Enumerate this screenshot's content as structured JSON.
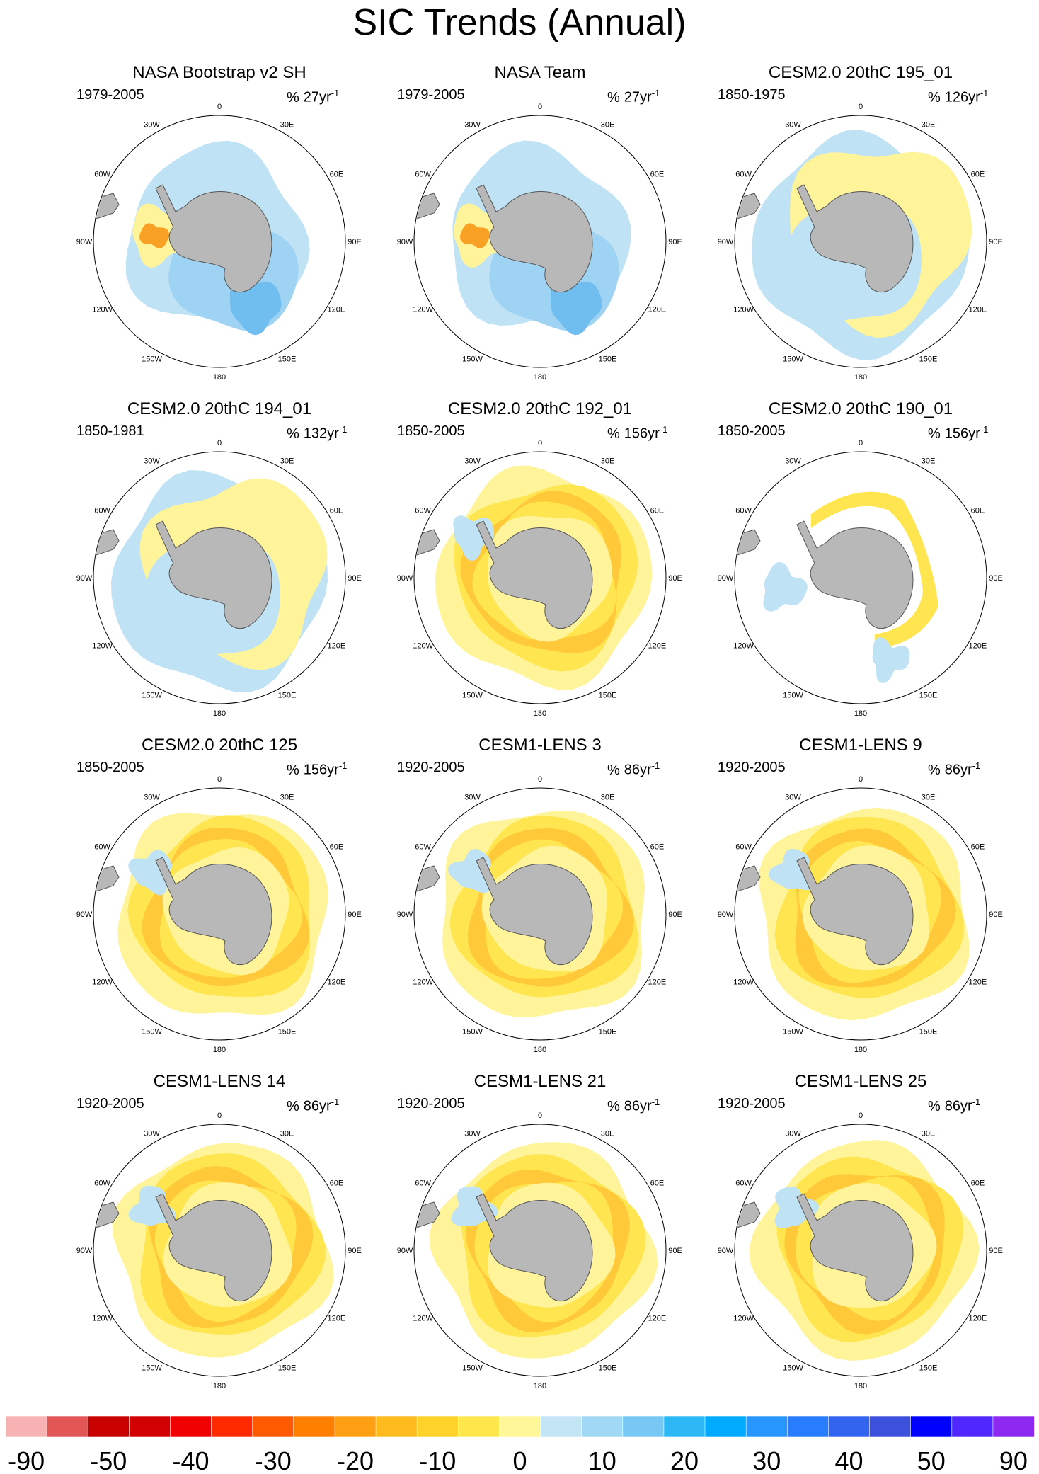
{
  "title": "SIC Trends (Annual)",
  "lon_labels": [
    "0",
    "30E",
    "60E",
    "90E",
    "120E",
    "150E",
    "180",
    "150W",
    "120W",
    "90W",
    "60W",
    "30W"
  ],
  "colors": {
    "land": "#b8b8b8",
    "coast": "#555555",
    "pale_yellow": "#fff49a",
    "yellow": "#ffe54f",
    "gold": "#ffc93a",
    "orange": "#f9a125",
    "light_blue": "#bfe2f5",
    "blue": "#9fd3f3",
    "mid_blue": "#70bdf0"
  },
  "panels": [
    {
      "title": "NASA Bootstrap v2 SH",
      "period": "1979-2005",
      "trend_prefix": "%",
      "trend_value": "27yr",
      "trend_exp": "-1",
      "pattern": "obs"
    },
    {
      "title": "NASA Team",
      "period": "1979-2005",
      "trend_prefix": "%",
      "trend_value": "27yr",
      "trend_exp": "-1",
      "pattern": "obs"
    },
    {
      "title": "CESM2.0 20thC 195_01",
      "period": "1850-1975",
      "trend_prefix": "%",
      "trend_value": "126yr",
      "trend_exp": "-1",
      "pattern": "mixed"
    },
    {
      "title": "CESM2.0 20thC 194_01",
      "period": "1850-1981",
      "trend_prefix": "%",
      "trend_value": "132yr",
      "trend_exp": "-1",
      "pattern": "mixed"
    },
    {
      "title": "CESM2.0 20thC 192_01",
      "period": "1850-2005",
      "trend_prefix": "%",
      "trend_value": "156yr",
      "trend_exp": "-1",
      "pattern": "neg"
    },
    {
      "title": "CESM2.0 20thC 190_01",
      "period": "1850-2005",
      "trend_prefix": "%",
      "trend_value": "156yr",
      "trend_exp": "-1",
      "pattern": "sparse"
    },
    {
      "title": "CESM2.0 20thC 125",
      "period": "1850-2005",
      "trend_prefix": "%",
      "trend_value": "156yr",
      "trend_exp": "-1",
      "pattern": "neg"
    },
    {
      "title": "CESM1-LENS 3",
      "period": "1920-2005",
      "trend_prefix": "%",
      "trend_value": "86yr",
      "trend_exp": "-1",
      "pattern": "neg"
    },
    {
      "title": "CESM1-LENS 9",
      "period": "1920-2005",
      "trend_prefix": "%",
      "trend_value": "86yr",
      "trend_exp": "-1",
      "pattern": "neg"
    },
    {
      "title": "CESM1-LENS 14",
      "period": "1920-2005",
      "trend_prefix": "%",
      "trend_value": "86yr",
      "trend_exp": "-1",
      "pattern": "neg"
    },
    {
      "title": "CESM1-LENS 21",
      "period": "1920-2005",
      "trend_prefix": "%",
      "trend_value": "86yr",
      "trend_exp": "-1",
      "pattern": "neg"
    },
    {
      "title": "CESM1-LENS 25",
      "period": "1920-2005",
      "trend_prefix": "%",
      "trend_value": "86yr",
      "trend_exp": "-1",
      "pattern": "neg"
    }
  ],
  "colorbar": {
    "colors": [
      "#f7b3b3",
      "#e25656",
      "#c80000",
      "#d20000",
      "#f00000",
      "#ff2a00",
      "#ff5a00",
      "#ff8000",
      "#ffa014",
      "#ffba1e",
      "#ffd22a",
      "#ffe64b",
      "#fff79a",
      "#c3e5f5",
      "#a0d8f5",
      "#78c8f5",
      "#2db8f5",
      "#00aaff",
      "#2896ff",
      "#287dff",
      "#3264f0",
      "#3c50dc",
      "#0000ff",
      "#5028ff",
      "#8c28f0"
    ],
    "labels": [
      "-90",
      "-50",
      "-40",
      "-30",
      "-20",
      "-10",
      "0",
      "10",
      "20",
      "30",
      "40",
      "50",
      "90"
    ]
  }
}
